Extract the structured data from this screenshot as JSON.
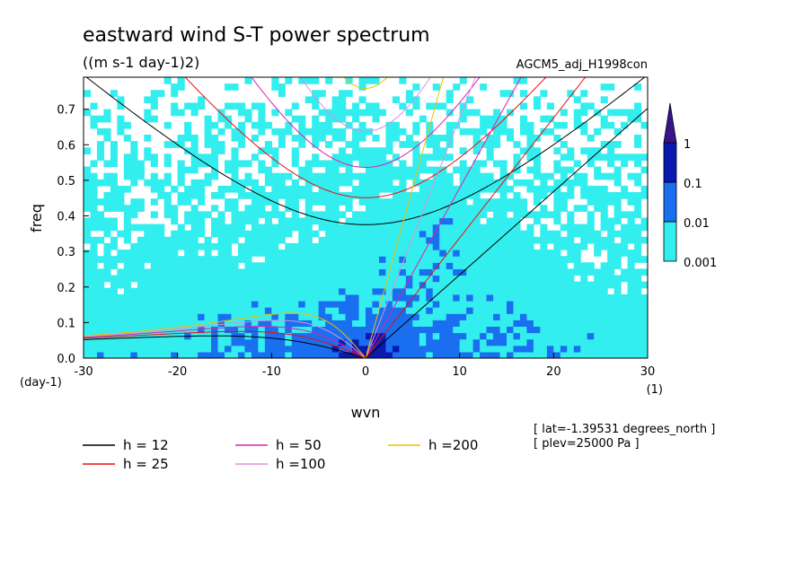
{
  "chart_data": {
    "type": "heatmap",
    "title": "eastward wind S-T power spectrum",
    "subtitle": "((m s-1 day-1)2)",
    "run_label": "AGCM5_adj_H1998con",
    "xlabel": "wvn",
    "ylabel": "freq",
    "x_unit": "(1)",
    "y_unit": "(day-1)",
    "xlim": [
      -30,
      30
    ],
    "ylim": [
      0,
      0.79
    ],
    "x_ticks": [
      -30,
      -20,
      -10,
      0,
      10,
      20,
      30
    ],
    "x_tick_labels": [
      "-30",
      "-20",
      "-10",
      "0",
      "10",
      "20",
      "30"
    ],
    "y_ticks": [
      0.0,
      0.1,
      0.2,
      0.3,
      0.4,
      0.5,
      0.6,
      0.7
    ],
    "y_tick_labels": [
      "0.0",
      "0.1",
      "0.2",
      "0.3",
      "0.4",
      "0.5",
      "0.6",
      "0.7"
    ],
    "colorbar": {
      "levels": [
        0.001,
        0.01,
        0.1,
        1
      ],
      "labels": [
        "0.001",
        "0.01",
        "0.1",
        "1"
      ],
      "colors": [
        "#ffffff",
        "#33eeee",
        "#1a6ef0",
        "#0a1ab0",
        "#3a148c"
      ]
    },
    "dispersion_curves": [
      {
        "label": "h = 12",
        "h": 12,
        "color": "#000000"
      },
      {
        "label": "h = 25",
        "h": 25,
        "color": "#e81010"
      },
      {
        "label": "h = 50",
        "h": 50,
        "color": "#e020b0"
      },
      {
        "label": "h =100",
        "h": 100,
        "color": "#dd90dd"
      },
      {
        "label": "h =200",
        "h": 200,
        "color": "#f0c000"
      }
    ],
    "annotations": [
      "[ lat=-1.39531 degrees_north ]",
      "[ plev=25000 Pa ]"
    ]
  }
}
